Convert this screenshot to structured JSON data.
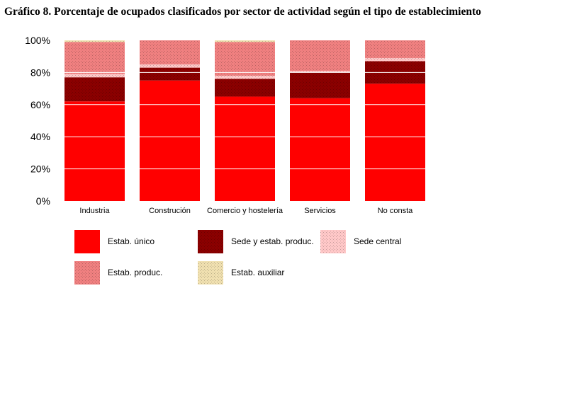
{
  "chart_data": {
    "type": "bar",
    "stacked": true,
    "percent": true,
    "title": "Gráfico 8. Porcentaje de ocupados clasificados por sector de actividad según el tipo de establecimiento",
    "categories": [
      "Industria",
      "Construción",
      "Comercio y hostelería",
      "Servicios",
      "No consta"
    ],
    "ylim": [
      0,
      100
    ],
    "yticks": [
      "0%",
      "20%",
      "40%",
      "60%",
      "80%",
      "100%"
    ],
    "ytick_values": [
      0,
      20,
      40,
      60,
      80,
      100
    ],
    "grid": true,
    "legend_position": "bottom",
    "series": [
      {
        "name": "Estab. único",
        "color": "#ff0000",
        "pattern": "solid",
        "values": [
          62,
          75,
          65,
          64,
          73
        ]
      },
      {
        "name": "Sede y estab. produc.",
        "color": "#8b0000",
        "pattern": "dots",
        "values": [
          15,
          8,
          11,
          16,
          14
        ]
      },
      {
        "name": "Sede central",
        "color": "#ffc8c8",
        "pattern": "dots",
        "values": [
          2,
          2,
          2,
          1,
          2
        ]
      },
      {
        "name": "Estab. produc.",
        "color": "#f08080",
        "pattern": "dots",
        "values": [
          20,
          15,
          21,
          19,
          11
        ]
      },
      {
        "name": "Estab. auxiliar",
        "color": "#f0e0b0",
        "pattern": "dots",
        "values": [
          1,
          0,
          1,
          0,
          0
        ]
      }
    ]
  }
}
